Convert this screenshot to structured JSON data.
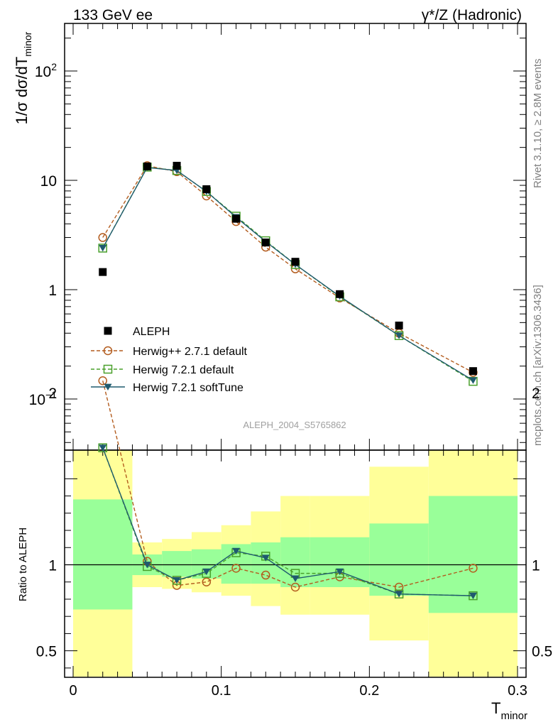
{
  "header": {
    "left": "133 GeV ee",
    "right": "γ*/Z (Hadronic)"
  },
  "side_labels": {
    "rivet": "Rivet 3.1.10, ≥ 2.8M events",
    "mcplots": "mcplots.cern.ch [arXiv:1306.3436]"
  },
  "watermark": "ALEPH_2004_S5765862",
  "colors": {
    "herwigpp": "#b35c1e",
    "herwig721": "#4aa02c",
    "softtune": "#1f5a6e",
    "band_inner": "#99ff99",
    "band_outer": "#ffff99"
  },
  "chart_data": [
    {
      "type": "scatter",
      "panel": "main",
      "ylabel": "1/σ dσ/dT_minor",
      "yscale": "log",
      "xlim": [
        0,
        0.3
      ],
      "ylim": [
        0.03,
        250
      ],
      "yticks": [
        "10^-1",
        "1",
        "10",
        "10^2"
      ],
      "legend_position": "lower-left",
      "series": [
        {
          "name": "ALEPH",
          "marker": "filled-square",
          "x": [
            0.02,
            0.05,
            0.07,
            0.09,
            0.11,
            0.13,
            0.15,
            0.18,
            0.22,
            0.27
          ],
          "values": [
            1.45,
            13.4,
            13.6,
            8.3,
            4.45,
            2.7,
            1.8,
            0.91,
            0.47,
            0.18
          ]
        },
        {
          "name": "Herwig++ 2.7.1 default",
          "marker": "open-circle",
          "line": "dashed",
          "color": "#b35c1e",
          "x": [
            0.02,
            0.05,
            0.07,
            0.09,
            0.11,
            0.13,
            0.15,
            0.18,
            0.22,
            0.27
          ],
          "values": [
            3.0,
            13.6,
            12.0,
            7.2,
            4.2,
            2.45,
            1.55,
            0.84,
            0.4,
            0.175
          ]
        },
        {
          "name": "Herwig 7.2.1 default",
          "marker": "open-square",
          "line": "dashed",
          "color": "#4aa02c",
          "x": [
            0.02,
            0.05,
            0.07,
            0.09,
            0.11,
            0.13,
            0.15,
            0.18,
            0.22,
            0.27
          ],
          "values": [
            2.4,
            13.2,
            12.3,
            7.9,
            4.7,
            2.8,
            1.7,
            0.86,
            0.38,
            0.145
          ]
        },
        {
          "name": "Herwig 7.2.1 softTune",
          "marker": "filled-triangle-down",
          "line": "solid",
          "color": "#1f5a6e",
          "x": [
            0.02,
            0.05,
            0.07,
            0.09,
            0.11,
            0.13,
            0.15,
            0.18,
            0.22,
            0.27
          ],
          "values": [
            2.4,
            13.1,
            12.3,
            7.9,
            4.6,
            2.75,
            1.7,
            0.87,
            0.38,
            0.148
          ]
        }
      ]
    },
    {
      "type": "line",
      "panel": "ratio",
      "ylabel": "Ratio to ALEPH",
      "xlabel": "T_minor",
      "xlim": [
        0,
        0.3
      ],
      "ylim": [
        0.35,
        2.25
      ],
      "xticks": [
        "0",
        "0.1",
        "0.2",
        "0.3"
      ],
      "yticks": [
        "0.5",
        "1",
        "2"
      ],
      "bins": [
        [
          0,
          0.04
        ],
        [
          0.04,
          0.06
        ],
        [
          0.06,
          0.08
        ],
        [
          0.08,
          0.1
        ],
        [
          0.1,
          0.12
        ],
        [
          0.12,
          0.14
        ],
        [
          0.14,
          0.16
        ],
        [
          0.16,
          0.2
        ],
        [
          0.2,
          0.24
        ],
        [
          0.24,
          0.3
        ]
      ],
      "uncertainty_inner": [
        [
          0.74,
          1.38
        ],
        [
          0.94,
          1.06
        ],
        [
          0.93,
          1.08
        ],
        [
          0.92,
          1.09
        ],
        [
          0.89,
          1.12
        ],
        [
          0.89,
          1.13
        ],
        [
          0.87,
          1.16
        ],
        [
          0.87,
          1.16
        ],
        [
          0.82,
          1.24
        ],
        [
          0.72,
          1.4
        ]
      ],
      "uncertainty_outer": [
        [
          0.35,
          1.68
        ],
        [
          0.87,
          1.13
        ],
        [
          0.86,
          1.15
        ],
        [
          0.84,
          1.19
        ],
        [
          0.82,
          1.23
        ],
        [
          0.76,
          1.31
        ],
        [
          0.71,
          1.4
        ],
        [
          0.71,
          1.4
        ],
        [
          0.56,
          1.57
        ],
        [
          0.35,
          1.72
        ]
      ],
      "series": [
        {
          "name": "Herwig++ 2.7.1 default",
          "x": [
            0.02,
            0.05,
            0.07,
            0.09,
            0.11,
            0.13,
            0.15,
            0.18,
            0.22,
            0.27
          ],
          "values": [
            2.07,
            1.02,
            0.88,
            0.9,
            0.98,
            0.94,
            0.87,
            0.93,
            0.87,
            0.98
          ]
        },
        {
          "name": "Herwig 7.2.1 default",
          "x": [
            0.02,
            0.05,
            0.07,
            0.09,
            0.11,
            0.13,
            0.15,
            0.18,
            0.22,
            0.27
          ],
          "values": [
            1.68,
            0.99,
            0.91,
            0.95,
            1.07,
            1.05,
            0.95,
            0.95,
            0.83,
            0.82
          ]
        },
        {
          "name": "Herwig 7.2.1 softTune",
          "x": [
            0.02,
            0.05,
            0.07,
            0.09,
            0.11,
            0.13,
            0.15,
            0.18,
            0.22,
            0.27
          ],
          "values": [
            1.68,
            1.0,
            0.91,
            0.96,
            1.08,
            1.04,
            0.92,
            0.96,
            0.83,
            0.82
          ]
        }
      ]
    }
  ]
}
